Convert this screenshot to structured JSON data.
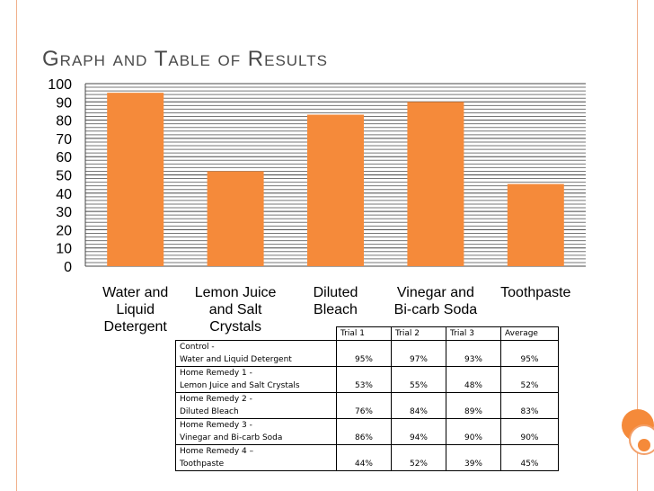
{
  "slide": {
    "title": "Graph and Table of Results"
  },
  "chart_data": {
    "type": "bar",
    "categories": [
      "Water and Liquid Detergent",
      "Lemon Juice and Salt Crystals",
      "Diluted Bleach",
      "Vinegar and Bi-carb Soda",
      "Toothpaste"
    ],
    "category_lines": [
      [
        "Water and",
        "Liquid",
        "Detergent"
      ],
      [
        "Lemon Juice",
        "and Salt",
        "Crystals"
      ],
      [
        "Diluted",
        "Bleach"
      ],
      [
        "Vinegar and",
        "Bi-carb Soda"
      ],
      [
        "Toothpaste"
      ]
    ],
    "values": [
      95,
      52,
      83,
      90,
      45
    ],
    "ylim": [
      0,
      100
    ],
    "yticks": [
      0,
      10,
      20,
      30,
      40,
      50,
      60,
      70,
      80,
      90,
      100
    ],
    "grid": true,
    "bar_color": "#f58a3a"
  },
  "table": {
    "headers": [
      "",
      "Trial 1",
      "Trial 2",
      "Trial 3",
      "Average"
    ],
    "rows": [
      {
        "label1": "Control -",
        "label2": "Water and Liquid Detergent",
        "t1": "95%",
        "t2": "97%",
        "t3": "93%",
        "avg": "95%"
      },
      {
        "label1": "Home Remedy 1 -",
        "label2": "Lemon Juice and Salt Crystals",
        "t1": "53%",
        "t2": "55%",
        "t3": "48%",
        "avg": "52%"
      },
      {
        "label1": "Home Remedy 2 -",
        "label2": "Diluted Bleach",
        "t1": "76%",
        "t2": "84%",
        "t3": "89%",
        "avg": "83%"
      },
      {
        "label1": "Home Remedy 3 -",
        "label2": "Vinegar and Bi-carb Soda",
        "t1": "86%",
        "t2": "94%",
        "t3": "90%",
        "avg": "90%"
      },
      {
        "label1": "Home Remedy 4 –",
        "label2": "Toothpaste",
        "t1": "44%",
        "t2": "52%",
        "t3": "39%",
        "avg": "45%"
      }
    ]
  }
}
